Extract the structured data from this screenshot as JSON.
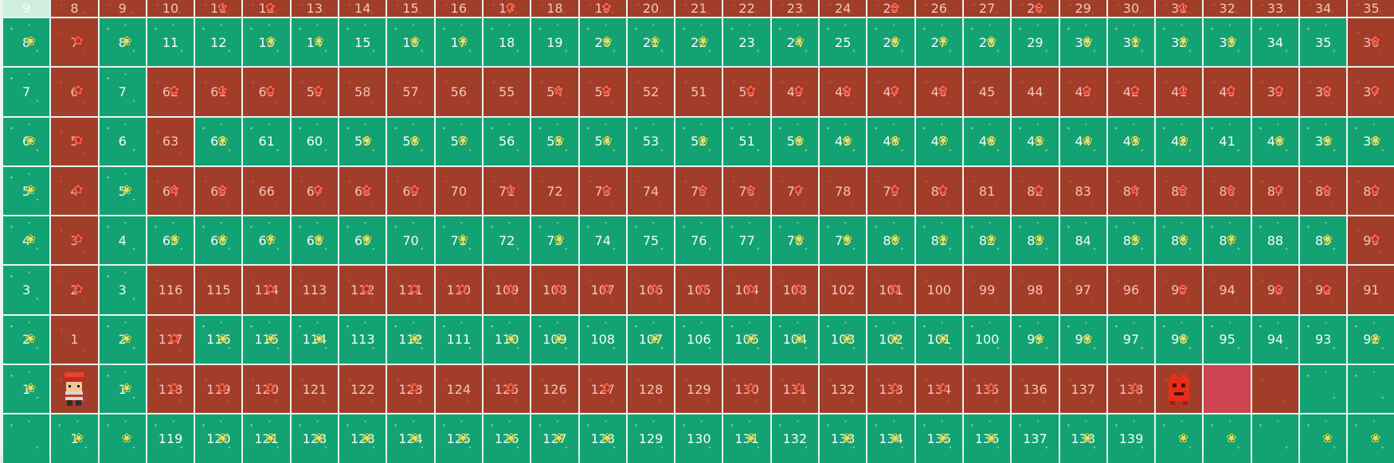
{
  "board": {
    "columns": 29,
    "rows": [
      {
        "nums": [
          "9",
          "8",
          "9",
          "10",
          "11",
          "12",
          "13",
          "14",
          "15",
          "16",
          "17",
          "18",
          "19",
          "20",
          "21",
          "22",
          "23",
          "24",
          "25",
          "26",
          "27",
          "28",
          "29",
          "30",
          "31",
          "32",
          "33",
          "34",
          "35"
        ],
        "colors": "prrrrrrrrrrrrrrrrrrrrrrrrrrrr",
        "icons": "....bb....b.b.....b..b..b...."
      },
      {
        "nums": [
          "8",
          "7",
          "8",
          "11",
          "12",
          "13",
          "14",
          "15",
          "16",
          "17",
          "18",
          "19",
          "20",
          "21",
          "22",
          "23",
          "24",
          "25",
          "26",
          "27",
          "28",
          "29",
          "30",
          "31",
          "32",
          "33",
          "34",
          "35",
          "36"
        ],
        "colors": "grggggggggggggggggggggggggggr",
        "icons": "sbs..ss.ss..sss.s.sss.ssss..b"
      },
      {
        "nums": [
          "7",
          "6",
          "7",
          "62",
          "61",
          "60",
          "59",
          "58",
          "57",
          "56",
          "55",
          "54",
          "53",
          "52",
          "51",
          "50",
          "49",
          "48",
          "47",
          "46",
          "45",
          "44",
          "43",
          "42",
          "41",
          "40",
          "39",
          "38",
          "37"
        ],
        "colors": "grgrrrrrrrrrrrrrrrrrrrrrrrrrr",
        "icons": ".b.bbbb....bb..bbbbb..bbbbbbb"
      },
      {
        "nums": [
          "6",
          "5",
          "6",
          "63",
          "62",
          "61",
          "60",
          "59",
          "58",
          "57",
          "56",
          "55",
          "54",
          "53",
          "52",
          "51",
          "50",
          "49",
          "48",
          "47",
          "46",
          "45",
          "44",
          "43",
          "42",
          "41",
          "40",
          "39",
          "38"
        ],
        "colors": "grgrggggggggggggggggggggggggg",
        "icons": "sb..s..sss.ss.s.sssssssss.sss"
      },
      {
        "nums": [
          "5",
          "4",
          "5",
          "64",
          "65",
          "66",
          "67",
          "68",
          "69",
          "70",
          "71",
          "72",
          "73",
          "74",
          "75",
          "76",
          "77",
          "78",
          "79",
          "80",
          "81",
          "82",
          "83",
          "84",
          "85",
          "86",
          "87",
          "88",
          "89"
        ],
        "colors": "grgrrrrrrrrrrrrrrrrrrrrrrrrrr",
        "icons": "sbsbb.bbb.b.b.bbb.bb.b.bbbbbb"
      },
      {
        "nums": [
          "4",
          "3",
          "4",
          "65",
          "66",
          "67",
          "68",
          "69",
          "70",
          "71",
          "72",
          "73",
          "74",
          "75",
          "76",
          "77",
          "78",
          "79",
          "80",
          "81",
          "82",
          "83",
          "84",
          "85",
          "86",
          "87",
          "88",
          "89",
          "90"
        ],
        "colors": "grggggggggggggggggggggggggggr",
        "icons": "sb.sssss.s.s....ssssss.sss.sb"
      },
      {
        "nums": [
          "3",
          "2",
          "3",
          "116",
          "115",
          "114",
          "113",
          "112",
          "111",
          "110",
          "109",
          "108",
          "107",
          "106",
          "105",
          "104",
          "103",
          "102",
          "101",
          "100",
          "99",
          "98",
          "97",
          "96",
          "95",
          "94",
          "93",
          "92",
          "91"
        ],
        "colors": "grgrrrrrrrrrrrrrrrrrrrrrrrrrr",
        "icons": ".b...b.bbbbbbbbbb.b.....b.bb."
      },
      {
        "nums": [
          "2",
          "1",
          "2",
          "117",
          "116",
          "115",
          "114",
          "113",
          "112",
          "111",
          "110",
          "109",
          "108",
          "107",
          "106",
          "105",
          "104",
          "103",
          "102",
          "101",
          "100",
          "99",
          "98",
          "97",
          "96",
          "95",
          "94",
          "93",
          "92"
        ],
        "colors": "grgrggggggggggggggggggggggggg",
        "icons": "s.sbsss.s.ss.s.sssss.ss.s...s"
      },
      {
        "nums": [
          "1",
          "",
          "1",
          "118",
          "119",
          "120",
          "121",
          "122",
          "123",
          "124",
          "125",
          "126",
          "127",
          "128",
          "129",
          "130",
          "131",
          "132",
          "133",
          "134",
          "135",
          "136",
          "137",
          "138",
          "",
          "",
          "",
          "",
          ""
        ],
        "colors": "grgrrrrrrrrrrrrrrrrrrrrrrprgggg",
        "icons": "s.sbbb..b.b.b..bb.bbb..b....."
      },
      {
        "nums": [
          "",
          "1",
          "",
          "119",
          "120",
          "121",
          "128",
          "128",
          "124",
          "125",
          "126",
          "127",
          "128",
          "129",
          "130",
          "131",
          "132",
          "133",
          "134",
          "135",
          "136",
          "137",
          "138",
          "139",
          "",
          "",
          "",
          "",
          ""
        ],
        "colors": "ggggggggggggggggggggggggggggg",
        "icons": ".ss.sssssssss..s.ssss.s.ss.ss"
      }
    ],
    "player_row": 8,
    "player_col": 1,
    "enemy_row": 8,
    "enemy_col": 24
  },
  "palette": {
    "grass": "#13a274",
    "dirt": "#a23d2a",
    "highlight": "#cc4550",
    "grid_line": "#e9f5ef"
  },
  "icons": {
    "sprout": "sprout-icon",
    "bloom": "bloom-icon",
    "player": "player-icon",
    "enemy": "enemy-icon"
  }
}
